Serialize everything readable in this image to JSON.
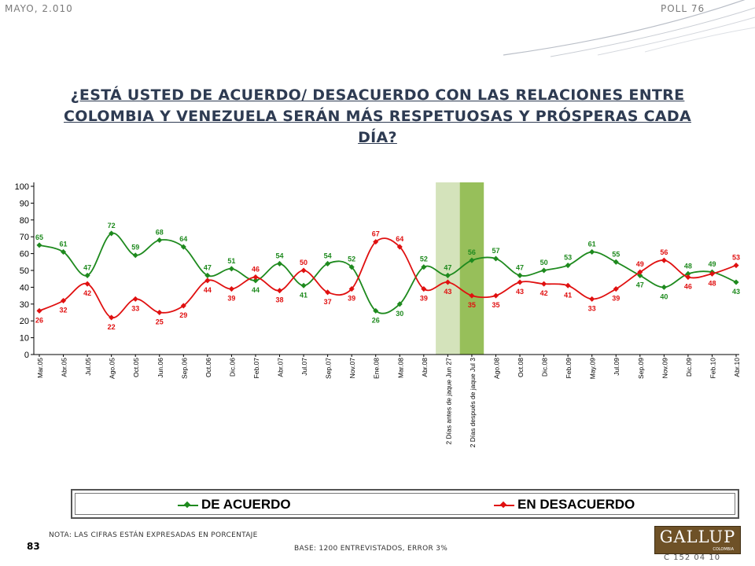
{
  "header": {
    "date": "MAYO, 2.010",
    "poll": "POLL 76"
  },
  "title": "¿ESTÁ USTED DE ACUERDO/ DESACUERDO CON LAS RELACIONES ENTRE COLOMBIA Y VENEZUELA SERÁN MÁS RESPETUOSAS Y PRÓSPERAS CADA DÍA?",
  "chart_data": {
    "type": "line",
    "x": [
      "Mar.05",
      "Abr.05",
      "Jul.05",
      "Ago.05",
      "Oct.05",
      "Jun.06",
      "Sep.06",
      "Oct.06",
      "Dic.06",
      "Feb.07",
      "Abr.07",
      "Jul.07",
      "Sep.07",
      "Nov.07",
      "Ene.08",
      "Mar.08",
      "Abr.08",
      "2 Días antes de jaque Jun 27",
      "2 Días después de jaque Jul 3",
      "Ago.08",
      "Oct.08",
      "Dic.08",
      "Feb.09",
      "May.09",
      "Jul.09",
      "Sep.09",
      "Nov.09",
      "Dic.09",
      "Feb.10",
      "Abr.10"
    ],
    "series": [
      {
        "name": "DE ACUERDO",
        "color": "#1e8a1e",
        "values": [
          65,
          61,
          47,
          72,
          59,
          68,
          64,
          47,
          51,
          44,
          54,
          41,
          54,
          52,
          26,
          30,
          52,
          47,
          56,
          57,
          47,
          50,
          53,
          61,
          55,
          47,
          40,
          48,
          49,
          43
        ]
      },
      {
        "name": "EN DESACUERDO",
        "color": "#e01010",
        "values": [
          26,
          32,
          42,
          22,
          33,
          25,
          29,
          44,
          39,
          46,
          38,
          50,
          37,
          39,
          67,
          64,
          39,
          43,
          35,
          35,
          43,
          42,
          41,
          33,
          39,
          49,
          56,
          46,
          48,
          53
        ]
      }
    ],
    "ylim": [
      0,
      100
    ],
    "yticks": [
      0,
      10,
      20,
      30,
      40,
      50,
      60,
      70,
      80,
      90,
      100
    ],
    "highlight_columns": [
      {
        "index": 17,
        "color": "#d4e3bb"
      },
      {
        "index": 18,
        "color": "#97bf5a"
      }
    ],
    "legend": "bottom"
  },
  "legend": {
    "acuerdo": "DE ACUERDO",
    "desacuerdo": "EN DESACUERDO"
  },
  "footer": {
    "note": "NOTA: LAS CIFRAS ESTÁN EXPRESADAS EN PORCENTAJE",
    "base": "BASE: 1200 ENTREVISTADOS, ERROR 3%",
    "page": "83",
    "code": "C 152 04 10",
    "logo_text": "GALLUP",
    "logo_sub": "COLOMBIA"
  }
}
